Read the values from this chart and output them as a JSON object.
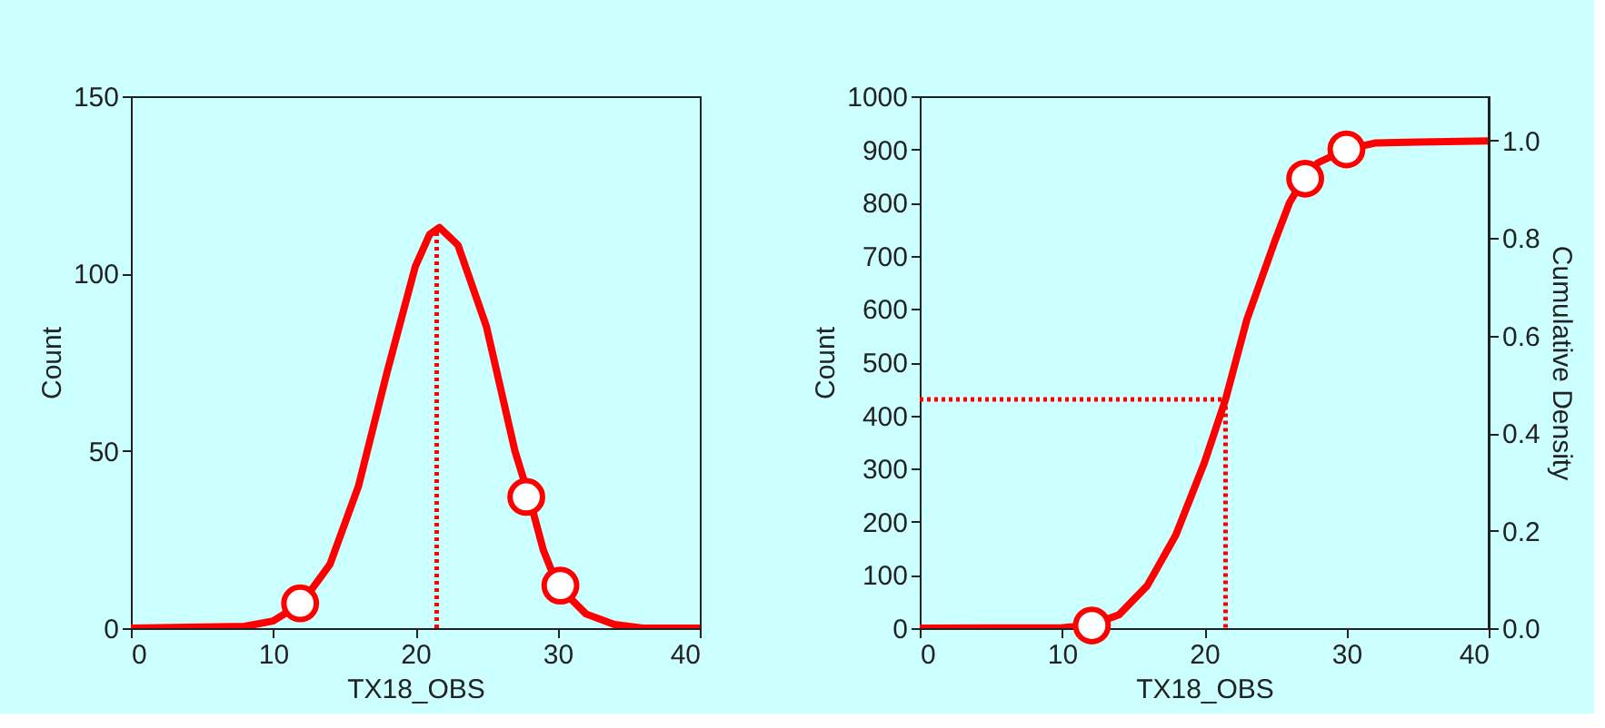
{
  "chart_data": [
    {
      "type": "line",
      "xlabel": "TX18_OBS",
      "ylabel": "Count",
      "xlim": [
        0,
        40
      ],
      "xticks": [
        0,
        10,
        20,
        30,
        40
      ],
      "ylim": [
        0,
        150
      ],
      "yticks": [
        0,
        50,
        100,
        150
      ],
      "grid": false,
      "series": [
        {
          "color": "#ff0000",
          "line_style": "solid",
          "x": [
            0,
            8,
            10,
            12,
            14,
            16,
            18,
            20,
            21,
            21.7,
            23,
            25,
            27,
            28,
            29,
            30,
            32,
            34,
            36,
            40
          ],
          "values": [
            0,
            0.5,
            2,
            7,
            18,
            40,
            72,
            102,
            111,
            113,
            108,
            85,
            50,
            37,
            22,
            12,
            4,
            1,
            0,
            0
          ]
        },
        {
          "type": "line",
          "color": "#ff0000",
          "line_style": "dotted",
          "x": [
            21.5,
            21.5
          ],
          "values": [
            0,
            113
          ]
        },
        {
          "type": "scatter",
          "color": "#ff0000",
          "marker": "circle",
          "x": [
            11.9,
            27.8,
            30.2
          ],
          "values": [
            7,
            37,
            12
          ]
        }
      ]
    },
    {
      "type": "line",
      "xlabel": "TX18_OBS",
      "ylabel": "Count",
      "y2label": "Cumulative Density",
      "xlim": [
        0,
        40
      ],
      "xticks": [
        0,
        10,
        20,
        30,
        40
      ],
      "ylim": [
        0,
        1000
      ],
      "yticks": [
        0,
        100,
        200,
        300,
        400,
        500,
        600,
        700,
        800,
        900,
        {
          "value": 1000,
          "label": "1000"
        }
      ],
      "y2lim": [
        0,
        1.091
      ],
      "y2ticks": [
        {
          "value": 0,
          "label": "0.0"
        },
        0.2,
        0.4,
        0.6,
        0.8,
        {
          "value": 1,
          "label": "1.0"
        }
      ],
      "grid": false,
      "series": [
        {
          "color": "#ff0000",
          "line_style": "solid",
          "x": [
            0,
            10,
            12,
            14,
            16,
            18,
            20,
            21.5,
            23,
            25,
            26,
            27,
            28,
            30,
            32,
            35,
            40
          ],
          "values": [
            0,
            1,
            5,
            25,
            80,
            175,
            310,
            430,
            580,
            730,
            800,
            845,
            875,
            900,
            912,
            914,
            916
          ]
        },
        {
          "type": "line",
          "color": "#ff0000",
          "line_style": "dotted",
          "x": [
            0,
            21.5,
            21.5
          ],
          "values": [
            430,
            430,
            0
          ]
        },
        {
          "type": "scatter",
          "color": "#ff0000",
          "marker": "circle",
          "x": [
            12.1,
            27.1,
            30
          ],
          "values": [
            5,
            845,
            900
          ]
        }
      ]
    }
  ]
}
